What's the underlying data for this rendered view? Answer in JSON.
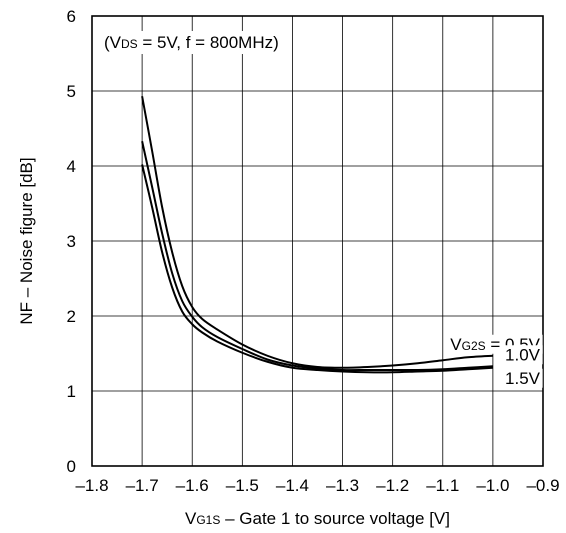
{
  "chart_data": {
    "type": "line",
    "condition_label": {
      "open": "(V",
      "sub": "DS",
      "rest": " = 5V, f = 800MHz)"
    },
    "xlabel": {
      "main": "V",
      "sub": "G1S",
      "rest": " – Gate 1 to source voltage [V]"
    },
    "ylabel": "NF – Noise figure [dB]",
    "xlim": [
      -1.8,
      -0.9
    ],
    "ylim": [
      0,
      6
    ],
    "x_ticks": [
      "–1.8",
      "–1.7",
      "–1.6",
      "–1.5",
      "–1.4",
      "–1.3",
      "–1.2",
      "–1.1",
      "–1.0",
      "–0.9"
    ],
    "y_ticks": [
      "0",
      "1",
      "2",
      "3",
      "4",
      "5",
      "6"
    ],
    "x_tick_values": [
      -1.8,
      -1.7,
      -1.6,
      -1.5,
      -1.4,
      -1.3,
      -1.2,
      -1.1,
      -1.0,
      -0.9
    ],
    "y_tick_values": [
      0,
      1,
      2,
      3,
      4,
      5,
      6
    ],
    "grid": true,
    "series_label_prefix": {
      "main": "V",
      "sub": "G2S",
      "rest": " = "
    },
    "series": [
      {
        "name": "0.5V",
        "x": [
          -1.7,
          -1.68,
          -1.66,
          -1.64,
          -1.62,
          -1.6,
          -1.58,
          -1.55,
          -1.5,
          -1.45,
          -1.4,
          -1.35,
          -1.3,
          -1.25,
          -1.2,
          -1.15,
          -1.1,
          -1.05,
          -1.0
        ],
        "y": [
          4.93,
          4.2,
          3.45,
          2.85,
          2.4,
          2.12,
          1.96,
          1.82,
          1.62,
          1.47,
          1.37,
          1.32,
          1.31,
          1.32,
          1.34,
          1.37,
          1.41,
          1.45,
          1.47
        ]
      },
      {
        "name": "1.0V",
        "x": [
          -1.7,
          -1.68,
          -1.66,
          -1.64,
          -1.62,
          -1.6,
          -1.58,
          -1.55,
          -1.5,
          -1.45,
          -1.4,
          -1.35,
          -1.3,
          -1.25,
          -1.2,
          -1.15,
          -1.1,
          -1.05,
          -1.0
        ],
        "y": [
          4.33,
          3.72,
          3.1,
          2.57,
          2.2,
          1.99,
          1.85,
          1.72,
          1.56,
          1.42,
          1.34,
          1.3,
          1.28,
          1.28,
          1.28,
          1.28,
          1.29,
          1.31,
          1.33
        ]
      },
      {
        "name": "1.5V",
        "x": [
          -1.7,
          -1.68,
          -1.66,
          -1.64,
          -1.62,
          -1.6,
          -1.58,
          -1.55,
          -1.5,
          -1.45,
          -1.4,
          -1.35,
          -1.3,
          -1.25,
          -1.2,
          -1.15,
          -1.1,
          -1.05,
          -1.0
        ],
        "y": [
          4.02,
          3.45,
          2.85,
          2.38,
          2.06,
          1.89,
          1.78,
          1.66,
          1.51,
          1.39,
          1.31,
          1.28,
          1.26,
          1.25,
          1.25,
          1.26,
          1.27,
          1.29,
          1.31
        ]
      }
    ]
  }
}
